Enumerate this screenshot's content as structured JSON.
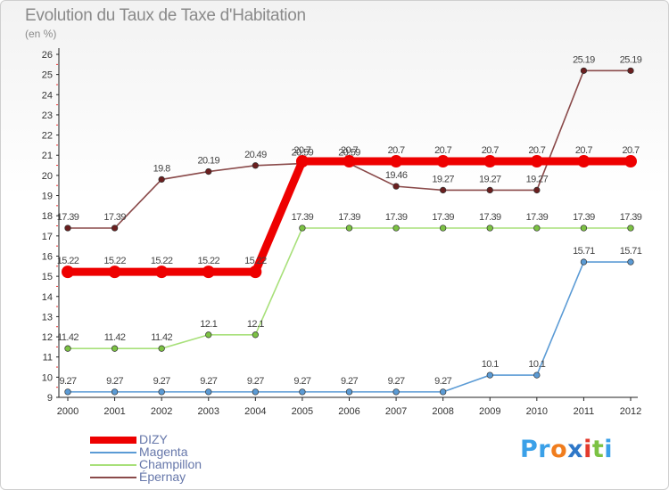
{
  "header": {
    "title": "Evolution du Taux de Taxe d'Habitation",
    "unit": "(en %)"
  },
  "logo": {
    "parts": [
      {
        "text": "Pr",
        "color": "#3aa0e8"
      },
      {
        "text": "o",
        "color": "#f07d1e"
      },
      {
        "text": "x",
        "color": "#2e77c8"
      },
      {
        "text": "i",
        "color": "#e33b2e"
      },
      {
        "text": "t",
        "color": "#7cc243"
      },
      {
        "text": "i",
        "color": "#3aa0e8"
      }
    ]
  },
  "chart_data": {
    "type": "line",
    "x": [
      "2000",
      "2001",
      "2002",
      "2003",
      "2004",
      "2005",
      "2006",
      "2007",
      "2008",
      "2009",
      "2010",
      "2011",
      "2012"
    ],
    "ylim": [
      9,
      26
    ],
    "yticks": [
      "9",
      "10",
      "11",
      "12",
      "13",
      "14",
      "15",
      "16",
      "17",
      "18",
      "19",
      "20",
      "21",
      "22",
      "23",
      "24",
      "25",
      "26"
    ],
    "grid": false,
    "legend_position": "bottom-left",
    "series": [
      {
        "name": "DIZY",
        "color": "#ee0000",
        "emphasis": true,
        "values": [
          15.22,
          15.22,
          15.22,
          15.22,
          15.22,
          20.7,
          20.7,
          20.7,
          20.7,
          20.7,
          20.7,
          20.7,
          20.7
        ],
        "labels": [
          "15.22",
          "15.22",
          "15.22",
          "15.22",
          "15.22",
          "20.7",
          "20.7",
          "20.7",
          "20.7",
          "20.7",
          "20.7",
          "20.7",
          "20.7"
        ]
      },
      {
        "name": "Magenta",
        "color": "#5b9bd5",
        "marker_fill": "#5b9bd5",
        "values": [
          9.27,
          9.27,
          9.27,
          9.27,
          9.27,
          9.27,
          9.27,
          9.27,
          9.27,
          10.1,
          10.1,
          15.71,
          15.71
        ],
        "labels": [
          "9.27",
          "9.27",
          "9.27",
          "9.27",
          "9.27",
          "9.27",
          "9.27",
          "9.27",
          "9.27",
          "10.1",
          "10.1",
          "15.71",
          "15.71"
        ]
      },
      {
        "name": "Champillon",
        "color": "#a8e07a",
        "marker_fill": "#7cc243",
        "values": [
          11.42,
          11.42,
          11.42,
          12.1,
          12.1,
          17.39,
          17.39,
          17.39,
          17.39,
          17.39,
          17.39,
          17.39,
          17.39
        ],
        "labels": [
          "11.42",
          "11.42",
          "11.42",
          "12.1",
          "12.1",
          "17.39",
          "17.39",
          "17.39",
          "17.39",
          "17.39",
          "17.39",
          "17.39",
          "17.39"
        ]
      },
      {
        "name": "Épernay",
        "color": "#8a4a4a",
        "marker_fill": "#6b1f1f",
        "values": [
          17.39,
          17.39,
          19.8,
          20.19,
          20.49,
          20.59,
          20.59,
          19.46,
          19.27,
          19.27,
          19.27,
          25.19,
          25.19
        ],
        "labels": [
          "17.39",
          "17.39",
          "19.8",
          "20.19",
          "20.49",
          "20.59",
          "20.59",
          "19.46",
          "19.27",
          "19.27",
          "19.27",
          "25.19",
          "25.19"
        ]
      }
    ]
  }
}
